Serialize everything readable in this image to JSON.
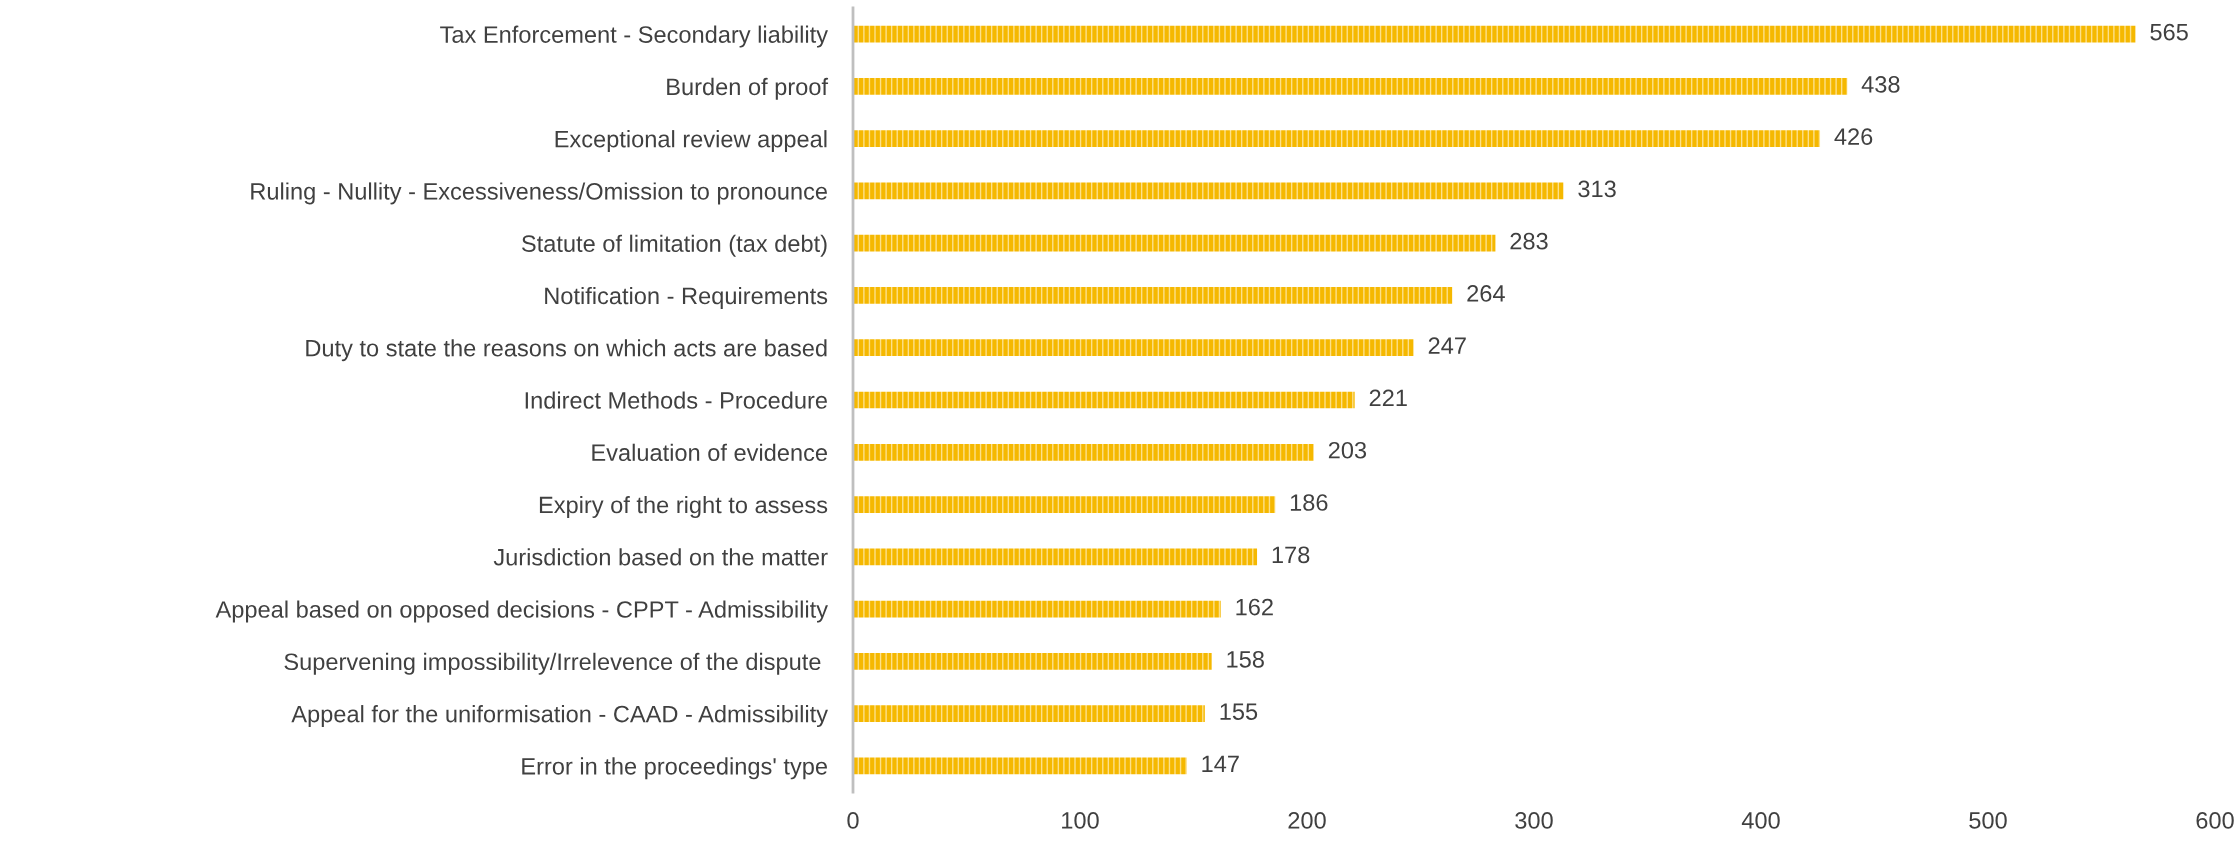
{
  "chart_data": {
    "type": "bar",
    "orientation": "horizontal",
    "categories": [
      "Tax Enforcement - Secondary liability",
      "Burden of proof",
      "Exceptional review appeal",
      "Ruling - Nullity - Excessiveness/Omission to pronounce",
      "Statute of limitation (tax debt)",
      "Notification - Requirements",
      "Duty to state the reasons on which acts are based",
      "Indirect Methods - Procedure",
      "Evaluation of evidence",
      "Expiry of the right to assess",
      "Jurisdiction based on the matter",
      "Appeal based on opposed decisions - CPPT - Admissibility",
      "Supervening impossibility/Irrelevence of the dispute ",
      "Appeal for the uniformisation - CAAD - Admissibility",
      "Error in the proceedings' type"
    ],
    "values": [
      565,
      438,
      426,
      313,
      283,
      264,
      247,
      221,
      203,
      186,
      178,
      162,
      158,
      155,
      147
    ],
    "color": "#f5b800",
    "xlim": [
      0,
      600
    ],
    "xticks": [
      0,
      100,
      200,
      300,
      400,
      500,
      600
    ],
    "data_labels": true,
    "grid": false,
    "legend": false
  }
}
